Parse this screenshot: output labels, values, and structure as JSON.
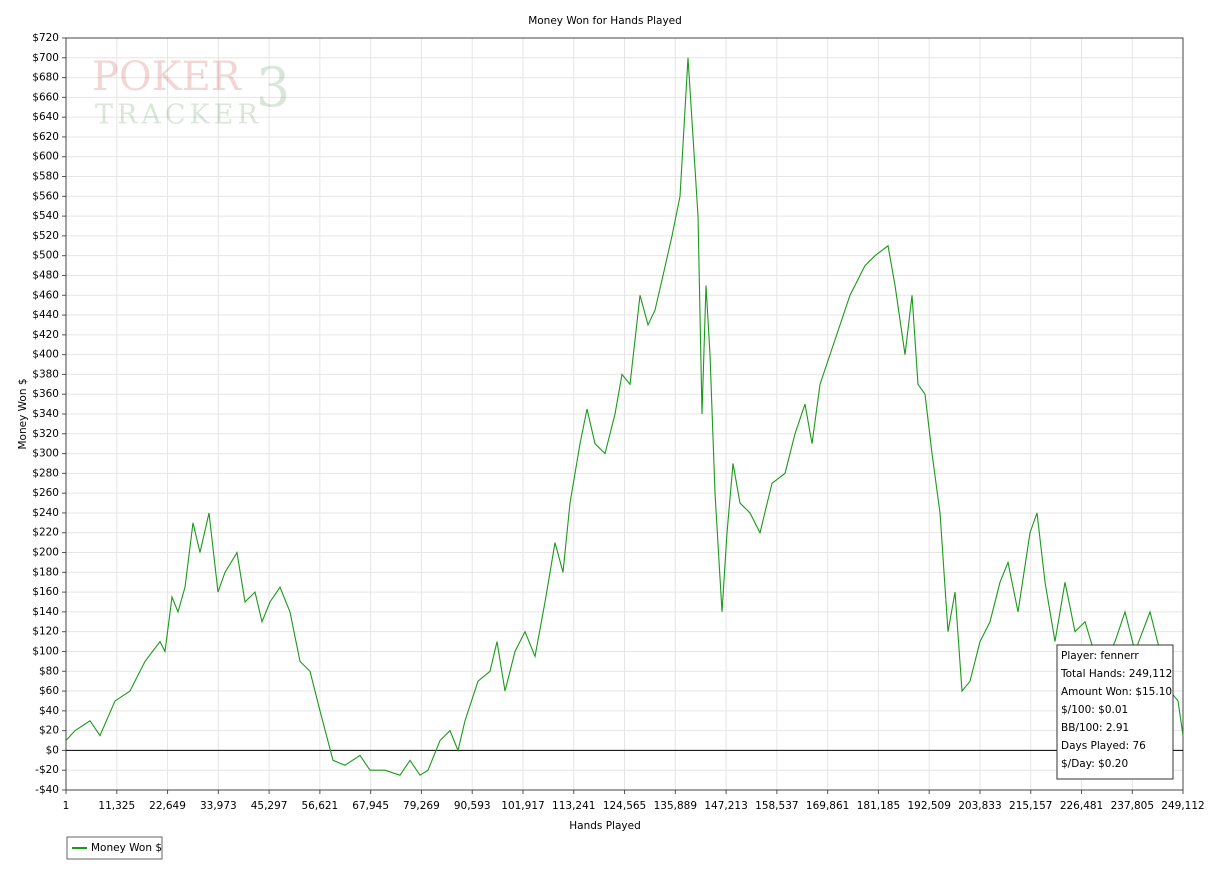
{
  "chart_data": {
    "type": "line",
    "title": "Money Won for Hands Played",
    "x_label": "Hands Played",
    "y_label": "Money Won $",
    "watermark": [
      "POKER",
      "3",
      "TRACKER"
    ],
    "series": [
      {
        "name": "Money Won $",
        "color": "#1a9a1a",
        "x": [
          1,
          2008,
          5353,
          7583,
          10929,
          14274,
          17619,
          20964,
          22080,
          23641,
          24979,
          26540,
          28324,
          29885,
          31893,
          33900,
          35461,
          38137,
          39921,
          42152,
          43713,
          45497,
          47727,
          49957,
          52188,
          54418,
          56648,
          59547,
          62224,
          65569,
          67799,
          71145,
          74490,
          76720,
          78950,
          80735,
          83411,
          85641,
          87425,
          88986,
          91886,
          94562,
          96123,
          97907,
          100137,
          102368,
          104598,
          106828,
          109058,
          110842,
          112403,
          114634,
          116195,
          117979,
          120209,
          122439,
          124000,
          125785,
          128015,
          129799,
          131360,
          133145,
          135152,
          136936,
          138720,
          139835,
          140950,
          141842,
          142735,
          143627,
          144742,
          146303,
          147418,
          148756,
          150317,
          152548,
          154778,
          157454,
          160353,
          162584,
          164814,
          166375,
          168159,
          170389,
          172620,
          174850,
          178195,
          180426,
          183325,
          184886,
          187116,
          188677,
          190015,
          191576,
          193137,
          194921,
          196705,
          198267,
          199828,
          201612,
          203842,
          206072,
          208303,
          210087,
          212317,
          214993,
          216555,
          218339,
          220569,
          222799,
          225029,
          227260,
          230605,
          233950,
          236181,
          238411,
          241757,
          243987,
          246217,
          248001,
          249112
        ],
        "values": [
          10,
          20,
          30,
          15,
          50,
          60,
          90,
          110,
          100,
          155,
          140,
          165,
          230,
          200,
          240,
          160,
          180,
          200,
          150,
          160,
          130,
          150,
          165,
          140,
          90,
          80,
          40,
          -10,
          -15,
          -5,
          -20,
          -20,
          -25,
          -10,
          -25,
          -20,
          10,
          20,
          0,
          30,
          70,
          80,
          110,
          60,
          100,
          120,
          95,
          150,
          210,
          180,
          250,
          310,
          345,
          310,
          300,
          340,
          380,
          370,
          460,
          430,
          445,
          480,
          520,
          560,
          700,
          620,
          540,
          340,
          470,
          400,
          260,
          140,
          220,
          290,
          250,
          240,
          220,
          270,
          280,
          320,
          350,
          310,
          370,
          400,
          430,
          460,
          490,
          500,
          510,
          470,
          400,
          460,
          370,
          360,
          300,
          240,
          120,
          160,
          60,
          70,
          110,
          130,
          170,
          190,
          140,
          220,
          240,
          170,
          110,
          170,
          120,
          130,
          80,
          110,
          140,
          100,
          140,
          100,
          60,
          50,
          15
        ]
      }
    ],
    "xlim": [
      1,
      249112
    ],
    "xticks": [
      1,
      {
        "value": 11325,
        "label": "11,325"
      },
      {
        "value": 22649,
        "label": "22,649"
      },
      {
        "value": 33973,
        "label": "33,973"
      },
      {
        "value": 45297,
        "label": "45,297"
      },
      {
        "value": 56621,
        "label": "56,621"
      },
      {
        "value": 67945,
        "label": "67,945"
      },
      {
        "value": 79269,
        "label": "79,269"
      },
      {
        "value": 90593,
        "label": "90,593"
      },
      {
        "value": 101917,
        "label": "101,917"
      },
      {
        "value": 113241,
        "label": "113,241"
      },
      {
        "value": 124565,
        "label": "124,565"
      },
      {
        "value": 135889,
        "label": "135,889"
      },
      {
        "value": 147213,
        "label": "147,213"
      },
      {
        "value": 158537,
        "label": "158,537"
      },
      {
        "value": 169861,
        "label": "169,861"
      },
      {
        "value": 181185,
        "label": "181,185"
      },
      {
        "value": 192509,
        "label": "192,509"
      },
      {
        "value": 203833,
        "label": "203,833"
      },
      {
        "value": 215157,
        "label": "215,157"
      },
      {
        "value": 226481,
        "label": "226,481"
      },
      {
        "value": 237805,
        "label": "237,805"
      },
      {
        "value": 249112,
        "label": "249,112"
      }
    ],
    "ylim": [
      -40,
      720
    ],
    "yticks": [
      {
        "value": -40,
        "label": "-$40"
      },
      {
        "value": -20,
        "label": "-$20"
      },
      {
        "value": 0,
        "label": "$0"
      },
      {
        "value": 20,
        "label": "$20"
      },
      {
        "value": 40,
        "label": "$40"
      },
      {
        "value": 60,
        "label": "$60"
      },
      {
        "value": 80,
        "label": "$80"
      },
      {
        "value": 100,
        "label": "$100"
      },
      {
        "value": 120,
        "label": "$120"
      },
      {
        "value": 140,
        "label": "$140"
      },
      {
        "value": 160,
        "label": "$160"
      },
      {
        "value": 180,
        "label": "$180"
      },
      {
        "value": 200,
        "label": "$200"
      },
      {
        "value": 220,
        "label": "$220"
      },
      {
        "value": 240,
        "label": "$240"
      },
      {
        "value": 260,
        "label": "$260"
      },
      {
        "value": 280,
        "label": "$280"
      },
      {
        "value": 300,
        "label": "$300"
      },
      {
        "value": 320,
        "label": "$320"
      },
      {
        "value": 340,
        "label": "$340"
      },
      {
        "value": 360,
        "label": "$360"
      },
      {
        "value": 380,
        "label": "$380"
      },
      {
        "value": 400,
        "label": "$400"
      },
      {
        "value": 420,
        "label": "$420"
      },
      {
        "value": 440,
        "label": "$440"
      },
      {
        "value": 460,
        "label": "$460"
      },
      {
        "value": 480,
        "label": "$480"
      },
      {
        "value": 500,
        "label": "$500"
      },
      {
        "value": 520,
        "label": "$520"
      },
      {
        "value": 540,
        "label": "$540"
      },
      {
        "value": 560,
        "label": "$560"
      },
      {
        "value": 580,
        "label": "$580"
      },
      {
        "value": 600,
        "label": "$600"
      },
      {
        "value": 620,
        "label": "$620"
      },
      {
        "value": 640,
        "label": "$640"
      },
      {
        "value": 660,
        "label": "$660"
      },
      {
        "value": 680,
        "label": "$680"
      },
      {
        "value": 700,
        "label": "$700"
      },
      {
        "value": 720,
        "label": "$720"
      }
    ],
    "grid": true,
    "annotations": [
      "Player: fennerr",
      "Total Hands: 249,112",
      "Amount Won: $15.10",
      "$/100: $0.01",
      "BB/100: 2.91",
      "Days Played: 76",
      "$/Day: $0.20"
    ]
  }
}
